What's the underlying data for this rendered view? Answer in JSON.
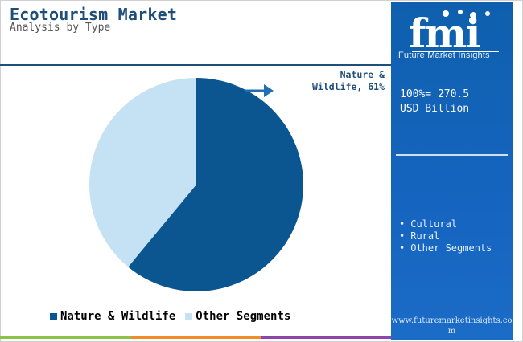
{
  "header": {
    "title": "Ecotourism Market",
    "subtitle": "Analysis by Type"
  },
  "chart_data": {
    "type": "pie",
    "title": "Ecotourism Market",
    "subtitle": "Analysis by Type",
    "slices": [
      {
        "label": "Nature & Wildlife",
        "value": 61,
        "color": "#0b5691"
      },
      {
        "label": "Other Segments",
        "value": 39,
        "color": "#c4e2f4"
      }
    ],
    "annotation": {
      "line1": "Nature &",
      "line2": "Wildlife, 61%"
    },
    "legend": {
      "position": "bottom",
      "items": [
        {
          "label": "Nature & Wildlife",
          "color": "#0b5691"
        },
        {
          "label": "Other Segments",
          "color": "#c4e2f4"
        }
      ]
    }
  },
  "side_panel": {
    "logo_text": "Future Market Insights",
    "total_line1": "100%= 270.5",
    "total_line2": "USD Billion",
    "other_segments": [
      "Cultural",
      "Rural",
      "Other Segments"
    ],
    "url": "www.futuremarketinsights.com"
  },
  "colors": {
    "primary": "#1f4e79",
    "panel": "#1565c0",
    "bar_green": "#8bc34a",
    "bar_orange": "#f28c28",
    "bar_purple": "#8e44ad"
  }
}
